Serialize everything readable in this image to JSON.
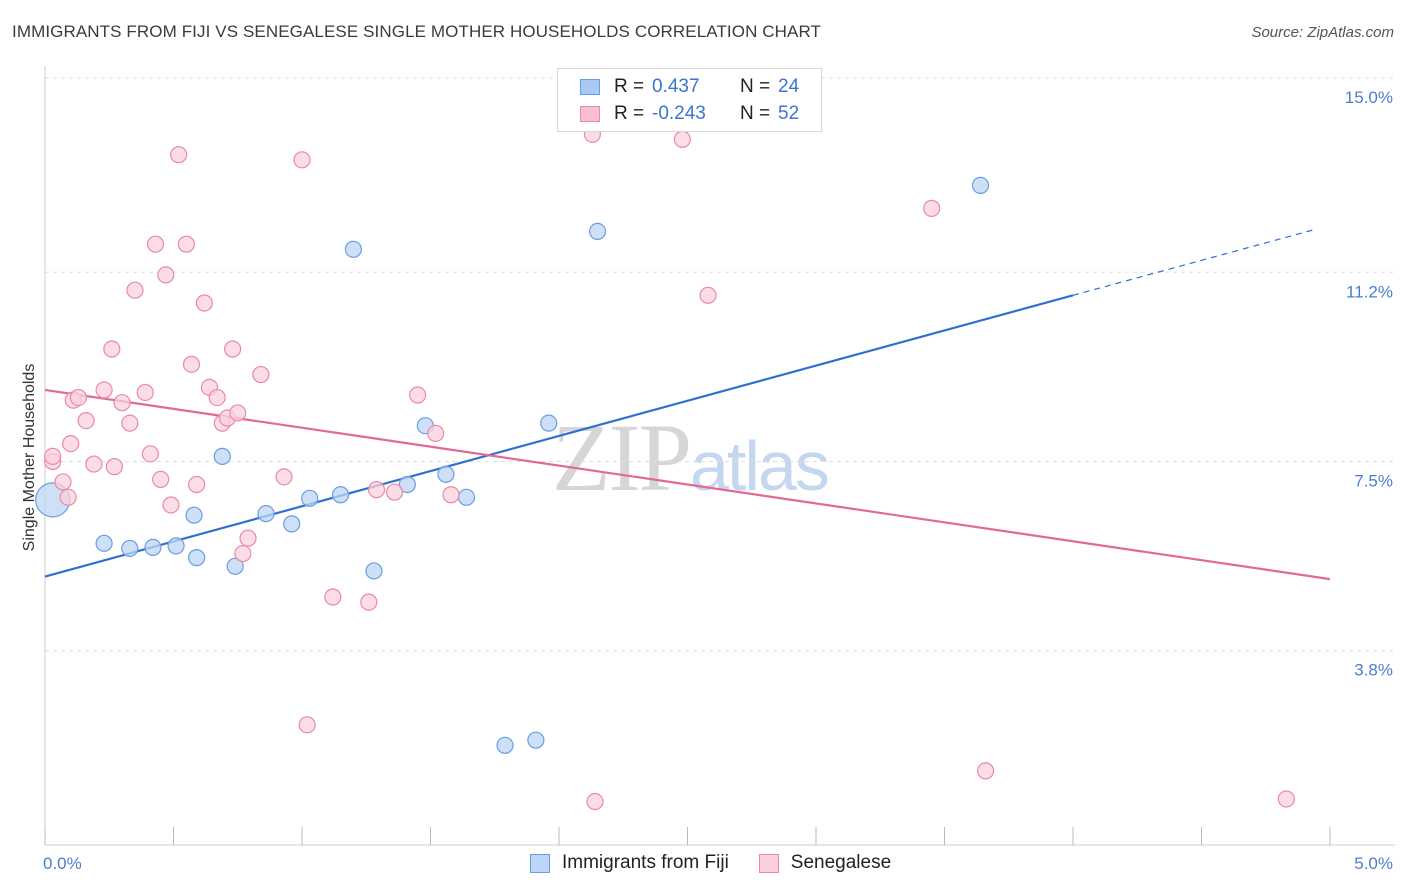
{
  "title": "IMMIGRANTS FROM FIJI VS SENEGALESE SINGLE MOTHER HOUSEHOLDS CORRELATION CHART",
  "source": "Source: ZipAtlas.com",
  "watermark": {
    "part1": "ZIP",
    "part2": "atlas"
  },
  "legend": {
    "rows": [
      {
        "r_label": "R =",
        "r_value": "0.437",
        "n_label": "N =",
        "n_value": "24",
        "color": "#a9c8f4",
        "border": "#6a9de0"
      },
      {
        "r_label": "R =",
        "r_value": "-0.243",
        "n_label": "N =",
        "n_value": "52",
        "color": "#f8bfd0",
        "border": "#e88aa8"
      }
    ]
  },
  "bottom_legend": [
    {
      "label": "Immigrants from Fiji",
      "color": "#bcd5f6",
      "border": "#6a9de0"
    },
    {
      "label": "Senegalese",
      "color": "#fbd0dc",
      "border": "#e88aa8"
    }
  ],
  "chart_data": {
    "type": "scatter",
    "title": "IMMIGRANTS FROM FIJI VS SENEGALESE SINGLE MOTHER HOUSEHOLDS CORRELATION CHART",
    "xlabel": "",
    "ylabel": "Single Mother Households",
    "xlim": [
      0.0,
      5.0
    ],
    "ylim": [
      0.0,
      15.0
    ],
    "x_tick_labels": [
      "0.0%",
      "5.0%"
    ],
    "y_ticks": [
      3.8,
      7.5,
      11.2,
      15.0
    ],
    "y_tick_labels": [
      "3.8%",
      "7.5%",
      "11.2%",
      "15.0%"
    ],
    "grid": true,
    "series": [
      {
        "name": "Immigrants from Fiji",
        "color": "#6a9de0",
        "fill": "#bcd5f6",
        "points": [
          [
            0.03,
            6.75
          ],
          [
            0.23,
            5.9
          ],
          [
            0.33,
            5.8
          ],
          [
            0.42,
            5.82
          ],
          [
            0.51,
            5.85
          ],
          [
            0.58,
            6.45
          ],
          [
            0.59,
            5.62
          ],
          [
            0.69,
            7.6
          ],
          [
            0.74,
            5.45
          ],
          [
            0.86,
            6.48
          ],
          [
            0.96,
            6.28
          ],
          [
            1.03,
            6.78
          ],
          [
            1.15,
            6.85
          ],
          [
            1.2,
            11.65
          ],
          [
            1.28,
            5.36
          ],
          [
            1.48,
            8.2
          ],
          [
            1.41,
            7.05
          ],
          [
            1.56,
            7.25
          ],
          [
            1.64,
            6.8
          ],
          [
            1.79,
            1.95
          ],
          [
            1.91,
            2.05
          ],
          [
            1.96,
            8.25
          ],
          [
            2.15,
            12.0
          ],
          [
            3.64,
            12.9
          ]
        ],
        "trend": {
          "x0": 0.0,
          "y0": 5.25,
          "x1": 4.0,
          "y1": 10.75,
          "dashed_to_x": 4.95,
          "dashed_to_y": 12.05
        }
      },
      {
        "name": "Senegalese",
        "color": "#e88aa8",
        "fill": "#fbd0dc",
        "points": [
          [
            0.03,
            7.5
          ],
          [
            0.03,
            7.6
          ],
          [
            0.07,
            7.1
          ],
          [
            0.09,
            6.8
          ],
          [
            0.1,
            7.85
          ],
          [
            0.11,
            8.7
          ],
          [
            0.13,
            8.75
          ],
          [
            0.16,
            8.3
          ],
          [
            0.19,
            7.45
          ],
          [
            0.23,
            8.9
          ],
          [
            0.26,
            9.7
          ],
          [
            0.27,
            7.4
          ],
          [
            0.3,
            8.65
          ],
          [
            0.33,
            8.25
          ],
          [
            0.35,
            10.85
          ],
          [
            0.39,
            8.85
          ],
          [
            0.41,
            7.65
          ],
          [
            0.43,
            11.75
          ],
          [
            0.45,
            7.15
          ],
          [
            0.47,
            11.15
          ],
          [
            0.49,
            6.65
          ],
          [
            0.52,
            13.5
          ],
          [
            0.55,
            11.75
          ],
          [
            0.57,
            9.4
          ],
          [
            0.59,
            7.05
          ],
          [
            0.62,
            10.6
          ],
          [
            0.64,
            8.95
          ],
          [
            0.67,
            8.75
          ],
          [
            0.69,
            8.25
          ],
          [
            0.71,
            8.35
          ],
          [
            0.73,
            9.7
          ],
          [
            0.75,
            8.45
          ],
          [
            0.77,
            5.7
          ],
          [
            0.79,
            6.0
          ],
          [
            0.84,
            9.2
          ],
          [
            0.93,
            7.2
          ],
          [
            1.0,
            13.4
          ],
          [
            1.02,
            2.35
          ],
          [
            1.12,
            4.85
          ],
          [
            1.26,
            4.75
          ],
          [
            1.29,
            6.95
          ],
          [
            1.36,
            6.9
          ],
          [
            1.45,
            8.8
          ],
          [
            1.52,
            8.05
          ],
          [
            1.58,
            6.85
          ],
          [
            2.13,
            13.9
          ],
          [
            2.14,
            0.85
          ],
          [
            2.48,
            13.8
          ],
          [
            2.58,
            10.75
          ],
          [
            3.45,
            12.45
          ],
          [
            3.66,
            1.45
          ],
          [
            4.83,
            0.9
          ]
        ],
        "trend": {
          "x0": 0.0,
          "y0": 8.9,
          "x1": 5.0,
          "y1": 5.2
        }
      }
    ]
  }
}
